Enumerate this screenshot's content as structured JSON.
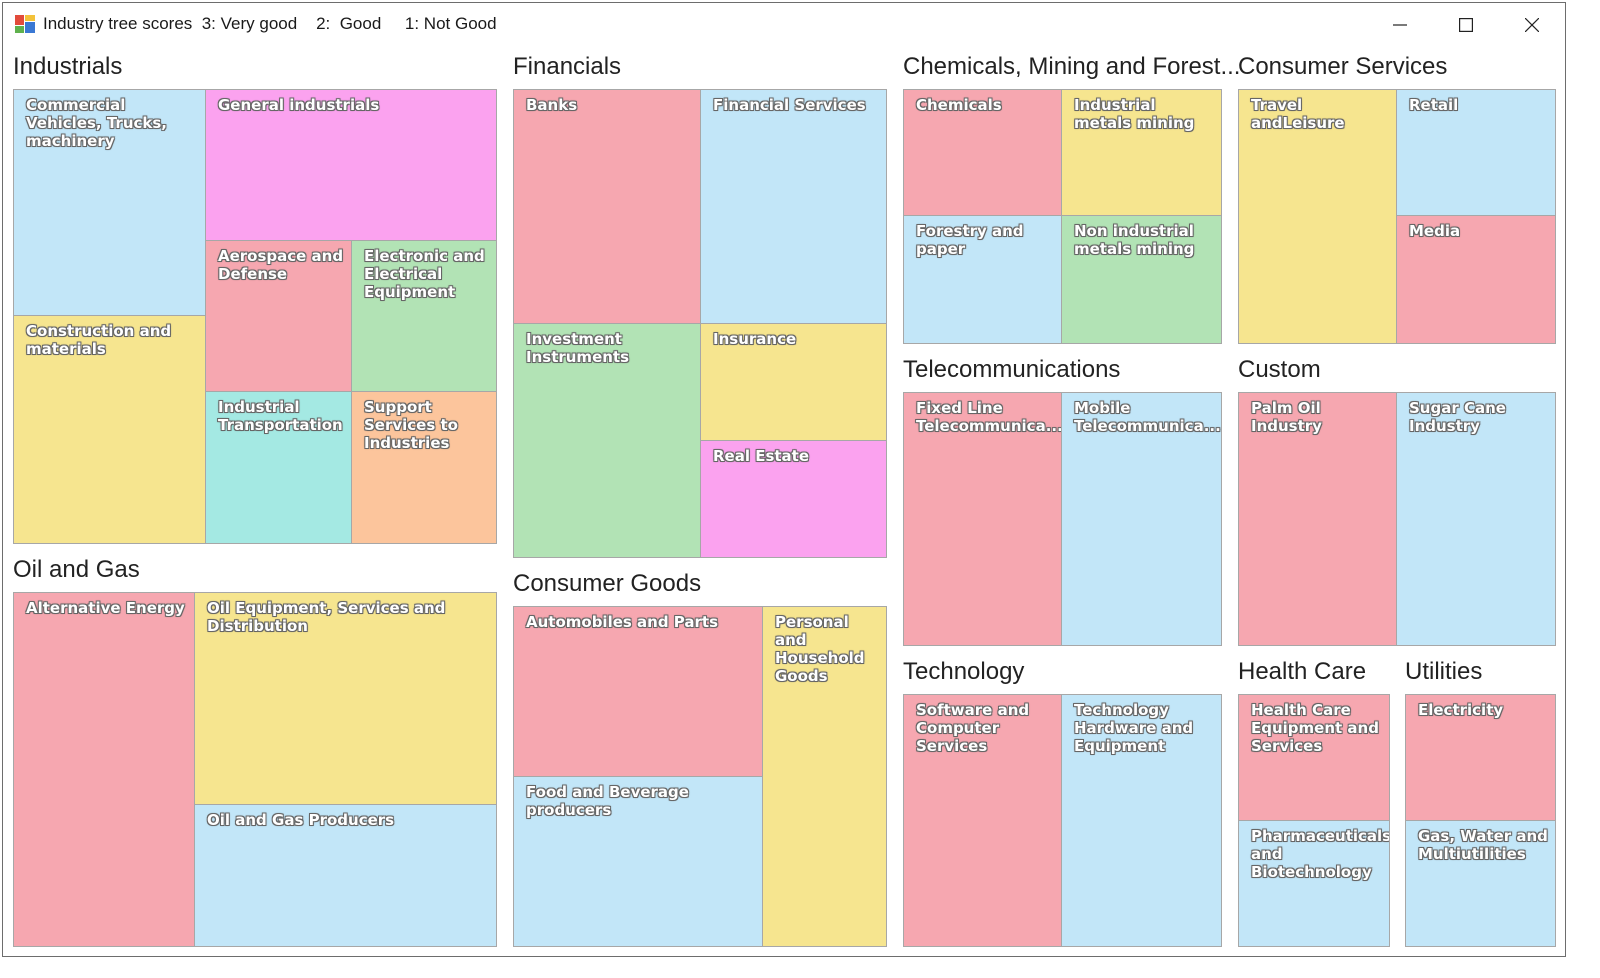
{
  "window": {
    "title": "Industry tree scores  3: Very good    2:  Good     1: Not Good"
  },
  "colors": {
    "red": "#f6a7b0",
    "blue": "#c2e6f8",
    "yellow": "#f6e58f",
    "green": "#b2e3b5",
    "pink": "#fba2ef",
    "cyan": "#a4e9e3",
    "orange": "#fcc59c"
  },
  "groups": {
    "industrials": {
      "title": "Industrials",
      "tiles": {
        "commercial": "Commercial Vehicles, Trucks, machinery",
        "general": "General industrials",
        "construction": "Construction and materials",
        "aerospace": "Aerospace and Defense",
        "electronic": "Electronic and Electrical Equipment",
        "transport": "Industrial Transportation",
        "support": "Support Services to Industries"
      }
    },
    "oilgas": {
      "title": "Oil and Gas",
      "tiles": {
        "alternative": "Alternative Energy",
        "equipment": "Oil Equipment, Services and Distribution",
        "producers": "Oil and Gas Producers"
      }
    },
    "financials": {
      "title": "Financials",
      "tiles": {
        "banks": "Banks",
        "services": "Financial Services",
        "investment": "Investment Instruments",
        "insurance": "Insurance",
        "realestate": "Real Estate"
      }
    },
    "consumergoods": {
      "title": "Consumer Goods",
      "tiles": {
        "automobiles": "Automobiles and Parts",
        "personal": "Personal and Household Goods",
        "food": "Food and Beverage producers"
      }
    },
    "chemicals": {
      "title": "Chemicals, Mining and Forest...",
      "tiles": {
        "chemicals": "Chemicals",
        "metals": "Industrial metals mining",
        "forestry": "Forestry and paper",
        "nonindustrial": "Non industrial metals mining"
      }
    },
    "telecom": {
      "title": "Telecommunications",
      "tiles": {
        "fixed": "Fixed Line Telecommunica...",
        "mobile": "Mobile Telecommunica..."
      }
    },
    "technology": {
      "title": "Technology",
      "tiles": {
        "software": "Software and Computer Services",
        "hardware": "Technology Hardware and Equipment"
      }
    },
    "consumerservices": {
      "title": "Consumer Services",
      "tiles": {
        "travel": "Travel andLeisure",
        "retail": "Retail",
        "media": "Media"
      }
    },
    "custom": {
      "title": "Custom",
      "tiles": {
        "palmoil": "Palm Oil Industry",
        "sugarcane": "Sugar Cane Industry"
      }
    },
    "healthcare": {
      "title": "Health Care",
      "tiles": {
        "equipment": "Health Care Equipment and Services",
        "pharma": "Pharmaceuticals and Biotechnology"
      }
    },
    "utilities": {
      "title": "Utilities",
      "tiles": {
        "electricity": "Electricity",
        "gas": "Gas, Water and Multiutilities"
      }
    }
  }
}
